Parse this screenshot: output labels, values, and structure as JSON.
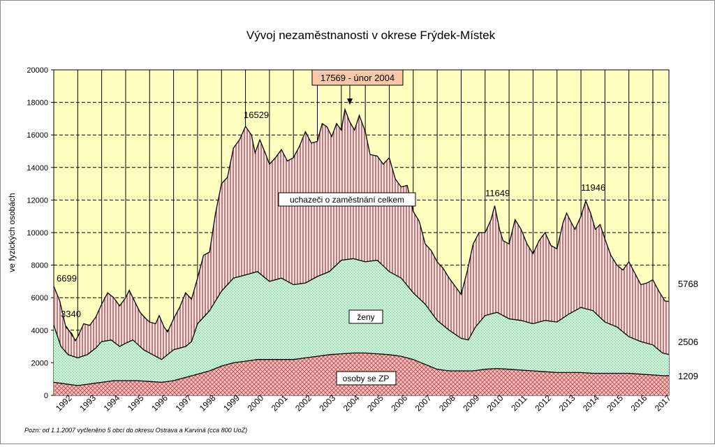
{
  "chart_data": {
    "type": "area",
    "title": "Vývoj nezaměstnanosti v okrese Frýdek-Místek",
    "ylabel": "ve fyzických osobách",
    "xlabel": "",
    "ylim": [
      0,
      20000
    ],
    "yticks": [
      0,
      2000,
      4000,
      6000,
      8000,
      10000,
      12000,
      14000,
      16000,
      18000,
      20000
    ],
    "xlim": [
      1992.0,
      2017.67
    ],
    "year_labels": [
      "1992",
      "1993",
      "1994",
      "1995",
      "1996",
      "1997",
      "1998",
      "1999",
      "2000",
      "2001",
      "2002",
      "2003",
      "2004",
      "2005",
      "2006",
      "2007",
      "2008",
      "2009",
      "2010",
      "2011",
      "2012",
      "2013",
      "2014",
      "2015",
      "2016",
      "2017"
    ],
    "grid": true,
    "legend": "none",
    "series": [
      {
        "name": "uchazeči o zaměstnání celkem",
        "color": "#c9a0a0",
        "points": [
          [
            1992.0,
            6700
          ],
          [
            1992.25,
            5800
          ],
          [
            1992.5,
            4200
          ],
          [
            1992.75,
            3800
          ],
          [
            1992.9,
            3350
          ],
          [
            1993.0,
            3600
          ],
          [
            1993.25,
            4400
          ],
          [
            1993.5,
            4300
          ],
          [
            1993.75,
            4800
          ],
          [
            1994.0,
            5600
          ],
          [
            1994.25,
            6300
          ],
          [
            1994.5,
            6000
          ],
          [
            1994.75,
            5500
          ],
          [
            1995.0,
            6000
          ],
          [
            1995.15,
            6450
          ],
          [
            1995.4,
            5700
          ],
          [
            1995.6,
            5100
          ],
          [
            1995.85,
            4700
          ],
          [
            1996.0,
            4500
          ],
          [
            1996.25,
            4400
          ],
          [
            1996.4,
            4900
          ],
          [
            1996.6,
            4200
          ],
          [
            1996.75,
            3900
          ],
          [
            1997.0,
            4700
          ],
          [
            1997.25,
            5400
          ],
          [
            1997.5,
            6300
          ],
          [
            1997.75,
            5900
          ],
          [
            1998.0,
            7200
          ],
          [
            1998.25,
            8600
          ],
          [
            1998.5,
            8800
          ],
          [
            1998.75,
            11200
          ],
          [
            1999.0,
            13000
          ],
          [
            1999.25,
            13400
          ],
          [
            1999.5,
            15200
          ],
          [
            1999.75,
            15700
          ],
          [
            2000.0,
            16529
          ],
          [
            2000.25,
            16000
          ],
          [
            2000.4,
            14900
          ],
          [
            2000.6,
            15700
          ],
          [
            2000.85,
            14800
          ],
          [
            2001.0,
            14200
          ],
          [
            2001.25,
            14600
          ],
          [
            2001.5,
            15100
          ],
          [
            2001.75,
            14400
          ],
          [
            2002.0,
            14600
          ],
          [
            2002.25,
            15300
          ],
          [
            2002.5,
            16200
          ],
          [
            2002.75,
            15500
          ],
          [
            2003.0,
            15600
          ],
          [
            2003.2,
            16700
          ],
          [
            2003.4,
            16500
          ],
          [
            2003.6,
            15900
          ],
          [
            2003.8,
            16700
          ],
          [
            2004.0,
            16300
          ],
          [
            2004.15,
            17569
          ],
          [
            2004.35,
            16800
          ],
          [
            2004.55,
            16300
          ],
          [
            2004.75,
            17200
          ],
          [
            2005.0,
            16200
          ],
          [
            2005.2,
            14800
          ],
          [
            2005.5,
            14700
          ],
          [
            2005.75,
            14200
          ],
          [
            2006.0,
            14600
          ],
          [
            2006.25,
            13300
          ],
          [
            2006.5,
            12800
          ],
          [
            2006.75,
            12900
          ],
          [
            2007.0,
            11300
          ],
          [
            2007.25,
            10700
          ],
          [
            2007.5,
            9300
          ],
          [
            2007.75,
            8900
          ],
          [
            2008.0,
            8200
          ],
          [
            2008.25,
            7800
          ],
          [
            2008.5,
            7200
          ],
          [
            2008.75,
            6700
          ],
          [
            2009.0,
            6200
          ],
          [
            2009.25,
            7600
          ],
          [
            2009.5,
            9300
          ],
          [
            2009.75,
            10000
          ],
          [
            2010.0,
            10000
          ],
          [
            2010.25,
            10800
          ],
          [
            2010.4,
            11649
          ],
          [
            2010.6,
            10200
          ],
          [
            2010.75,
            9500
          ],
          [
            2011.0,
            9300
          ],
          [
            2011.25,
            10800
          ],
          [
            2011.5,
            10200
          ],
          [
            2011.75,
            9300
          ],
          [
            2012.0,
            8700
          ],
          [
            2012.25,
            9500
          ],
          [
            2012.5,
            10000
          ],
          [
            2012.75,
            9200
          ],
          [
            2013.0,
            9000
          ],
          [
            2013.25,
            10600
          ],
          [
            2013.4,
            11200
          ],
          [
            2013.6,
            10600
          ],
          [
            2013.75,
            10200
          ],
          [
            2014.0,
            11000
          ],
          [
            2014.2,
            11946
          ],
          [
            2014.4,
            11200
          ],
          [
            2014.6,
            10200
          ],
          [
            2014.8,
            10500
          ],
          [
            2015.0,
            9600
          ],
          [
            2015.25,
            8600
          ],
          [
            2015.5,
            8000
          ],
          [
            2015.75,
            7700
          ],
          [
            2016.0,
            8200
          ],
          [
            2016.25,
            7500
          ],
          [
            2016.5,
            6800
          ],
          [
            2016.75,
            6900
          ],
          [
            2017.0,
            7100
          ],
          [
            2017.25,
            6400
          ],
          [
            2017.5,
            5800
          ],
          [
            2017.67,
            5768
          ]
        ]
      },
      {
        "name": "ženy",
        "color": "#c8f0d4",
        "points": [
          [
            1992.0,
            4300
          ],
          [
            1992.3,
            3000
          ],
          [
            1992.6,
            2500
          ],
          [
            1993.0,
            2300
          ],
          [
            1993.4,
            2500
          ],
          [
            1993.75,
            2900
          ],
          [
            1994.0,
            3300
          ],
          [
            1994.4,
            3400
          ],
          [
            1994.75,
            3000
          ],
          [
            1995.0,
            3200
          ],
          [
            1995.3,
            3400
          ],
          [
            1995.75,
            2800
          ],
          [
            1996.0,
            2600
          ],
          [
            1996.5,
            2200
          ],
          [
            1996.75,
            2500
          ],
          [
            1997.0,
            2800
          ],
          [
            1997.5,
            3000
          ],
          [
            1997.75,
            3300
          ],
          [
            1998.0,
            4400
          ],
          [
            1998.5,
            5200
          ],
          [
            1999.0,
            6400
          ],
          [
            1999.5,
            7200
          ],
          [
            2000.0,
            7400
          ],
          [
            2000.5,
            7600
          ],
          [
            2001.0,
            7000
          ],
          [
            2001.5,
            7200
          ],
          [
            2002.0,
            6800
          ],
          [
            2002.5,
            6900
          ],
          [
            2003.0,
            7300
          ],
          [
            2003.5,
            7600
          ],
          [
            2004.0,
            8300
          ],
          [
            2004.5,
            8400
          ],
          [
            2005.0,
            8200
          ],
          [
            2005.5,
            8300
          ],
          [
            2006.0,
            7600
          ],
          [
            2006.5,
            7200
          ],
          [
            2007.0,
            6300
          ],
          [
            2007.5,
            5600
          ],
          [
            2008.0,
            4600
          ],
          [
            2008.5,
            4000
          ],
          [
            2009.0,
            3500
          ],
          [
            2009.3,
            3400
          ],
          [
            2009.6,
            4200
          ],
          [
            2010.0,
            4900
          ],
          [
            2010.5,
            5100
          ],
          [
            2011.0,
            4700
          ],
          [
            2011.5,
            4600
          ],
          [
            2012.0,
            4400
          ],
          [
            2012.5,
            4600
          ],
          [
            2013.0,
            4500
          ],
          [
            2013.5,
            5000
          ],
          [
            2014.0,
            5400
          ],
          [
            2014.5,
            5200
          ],
          [
            2015.0,
            4500
          ],
          [
            2015.5,
            4200
          ],
          [
            2016.0,
            3600
          ],
          [
            2016.5,
            3300
          ],
          [
            2017.0,
            3100
          ],
          [
            2017.4,
            2600
          ],
          [
            2017.67,
            2506
          ]
        ]
      },
      {
        "name": "osoby se ZP",
        "color": "#e8a8a8",
        "points": [
          [
            1992.0,
            800
          ],
          [
            1992.5,
            700
          ],
          [
            1993.0,
            600
          ],
          [
            1993.5,
            700
          ],
          [
            1994.0,
            800
          ],
          [
            1994.5,
            900
          ],
          [
            1995.0,
            900
          ],
          [
            1995.5,
            900
          ],
          [
            1996.0,
            850
          ],
          [
            1996.5,
            800
          ],
          [
            1997.0,
            900
          ],
          [
            1997.5,
            1100
          ],
          [
            1998.0,
            1300
          ],
          [
            1998.5,
            1500
          ],
          [
            1999.0,
            1800
          ],
          [
            1999.5,
            2000
          ],
          [
            2000.0,
            2100
          ],
          [
            2000.5,
            2200
          ],
          [
            2001.0,
            2200
          ],
          [
            2001.5,
            2200
          ],
          [
            2002.0,
            2200
          ],
          [
            2002.5,
            2300
          ],
          [
            2003.0,
            2400
          ],
          [
            2003.5,
            2500
          ],
          [
            2004.0,
            2550
          ],
          [
            2004.5,
            2600
          ],
          [
            2005.0,
            2600
          ],
          [
            2005.5,
            2550
          ],
          [
            2006.0,
            2500
          ],
          [
            2006.5,
            2400
          ],
          [
            2007.0,
            2200
          ],
          [
            2007.5,
            1900
          ],
          [
            2008.0,
            1600
          ],
          [
            2008.5,
            1500
          ],
          [
            2009.0,
            1500
          ],
          [
            2009.5,
            1500
          ],
          [
            2010.0,
            1600
          ],
          [
            2010.5,
            1650
          ],
          [
            2011.0,
            1600
          ],
          [
            2011.5,
            1550
          ],
          [
            2012.0,
            1500
          ],
          [
            2012.5,
            1450
          ],
          [
            2013.0,
            1400
          ],
          [
            2013.5,
            1400
          ],
          [
            2014.0,
            1400
          ],
          [
            2014.5,
            1350
          ],
          [
            2015.0,
            1350
          ],
          [
            2015.5,
            1350
          ],
          [
            2016.0,
            1350
          ],
          [
            2016.5,
            1300
          ],
          [
            2017.0,
            1250
          ],
          [
            2017.5,
            1200
          ],
          [
            2017.67,
            1209
          ]
        ]
      }
    ],
    "series_labels": {
      "total": "uchazeči  o zaměstnání  celkem",
      "women": "ženy",
      "zp": "osoby se ZP"
    },
    "annotations": {
      "peak_2004": "17569 - únor 2004",
      "p_2000": "16529",
      "p_2010": "11649",
      "p_2014": "11946",
      "start_total": "6699",
      "min_1993": "3340",
      "end_total": "5768",
      "end_women": "2506",
      "end_zp": "1209"
    },
    "note": "Pozn:  od 1.1.2007 vyčleněno 5 obcí do okresu Ostrava a Karviná  (cca 800 UoZ)",
    "colors": {
      "plot_background": "#ffffc0",
      "total_fill": "#c9a0a0",
      "women_fill": "#c8f0d4",
      "zp_fill": "#e8a8a8",
      "peak_box": "#f8c8a8"
    }
  }
}
